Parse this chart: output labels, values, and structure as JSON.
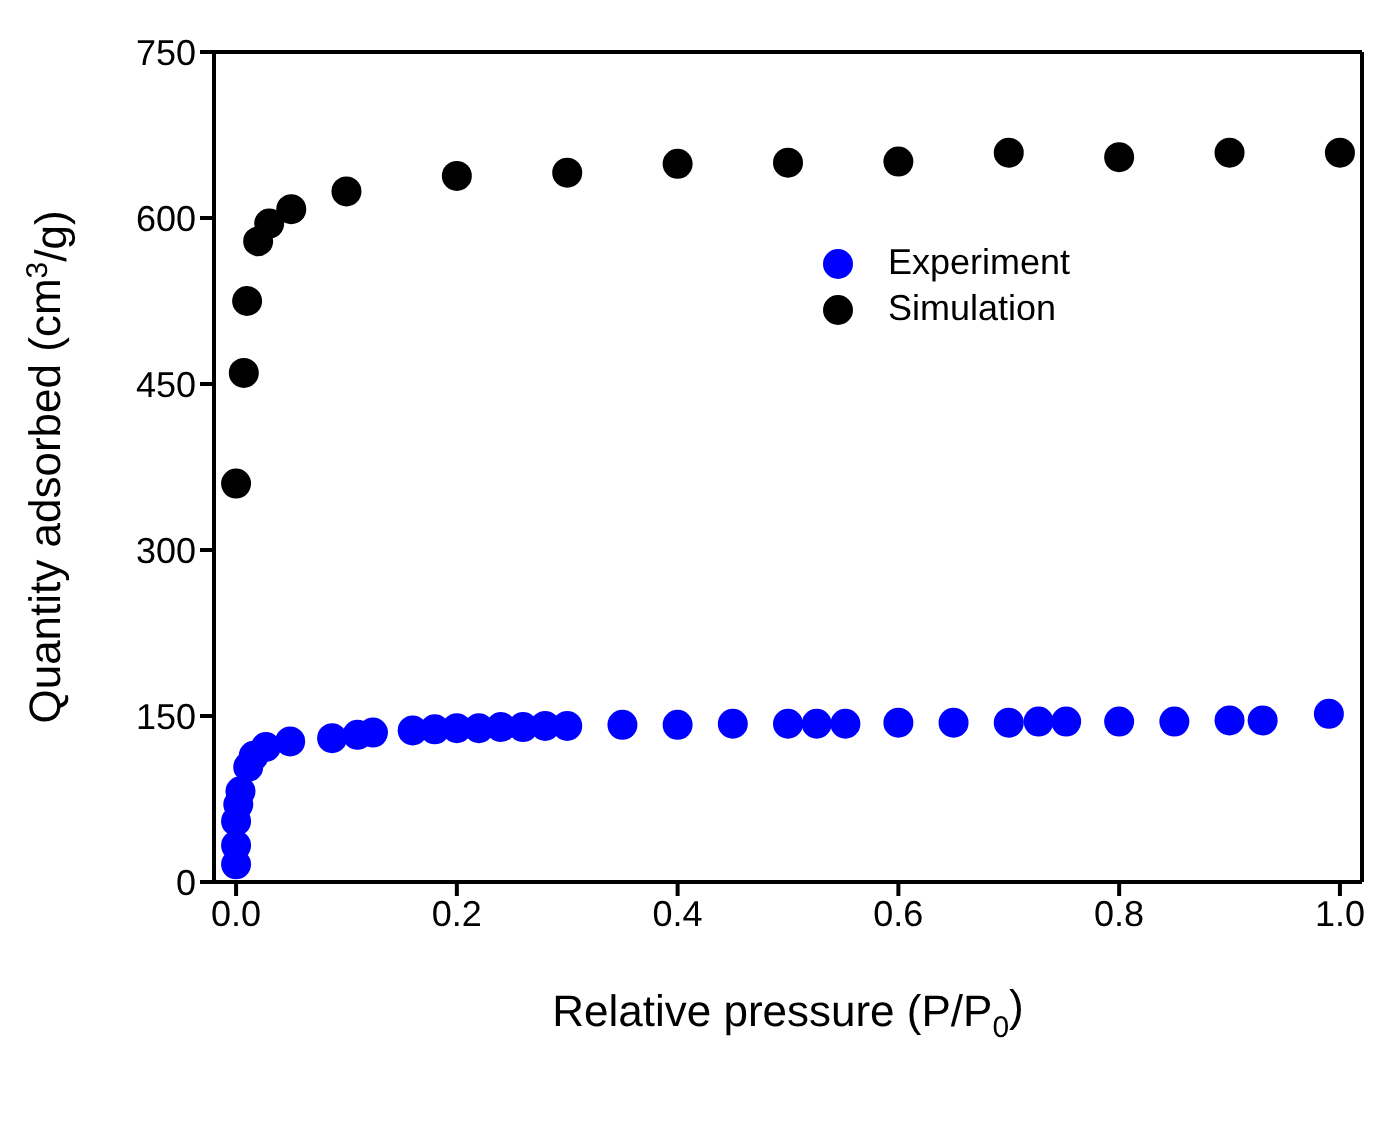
{
  "chart_data": {
    "type": "scatter",
    "xlabel": "Relative pressure (P/P$_{0}$)",
    "ylabel": "Quantity adsorbed (cm$^{3}$/g)",
    "xlim": [
      -0.02,
      1.02
    ],
    "xticks": [
      {
        "value": 0,
        "label": "0.0"
      },
      {
        "value": 0.2,
        "label": "0.2"
      },
      {
        "value": 0.4,
        "label": "0.4"
      },
      {
        "value": 0.6,
        "label": "0.6"
      },
      {
        "value": 0.8,
        "label": "0.8"
      },
      {
        "value": 1,
        "label": "1.0"
      }
    ],
    "ylim": [
      0,
      750
    ],
    "yticks": [
      0,
      150,
      300,
      450,
      600,
      750
    ],
    "legend": "right",
    "marker": "circle",
    "series": [
      {
        "name": "Experiment",
        "color": "#0000ff",
        "x": [
          0,
          0,
          0,
          0.002,
          0.004,
          0.011,
          0.016,
          0.027,
          0.049,
          0.087,
          0.11,
          0.124,
          0.16,
          0.18,
          0.2,
          0.22,
          0.24,
          0.26,
          0.28,
          0.3,
          0.35,
          0.4,
          0.45,
          0.5,
          0.526,
          0.552,
          0.6,
          0.65,
          0.7,
          0.727,
          0.752,
          0.8,
          0.85,
          0.9,
          0.93,
          0.99
        ],
        "values": [
          16,
          33,
          55,
          70,
          82,
          104,
          114,
          122,
          127,
          130,
          133,
          135,
          137,
          138,
          139,
          139,
          140,
          140,
          141,
          141,
          142,
          142,
          143,
          143,
          143,
          143,
          144,
          144,
          144,
          145,
          145,
          145,
          145,
          146,
          146,
          152
        ]
      },
      {
        "name": "Simulation",
        "color": "#000000",
        "x": [
          0,
          0.007,
          0.01,
          0.02,
          0.03,
          0.05,
          0.1,
          0.2,
          0.3,
          0.4,
          0.5,
          0.6,
          0.7,
          0.8,
          0.9,
          1.0
        ],
        "values": [
          360,
          460,
          525,
          579,
          595,
          608,
          624,
          638,
          641,
          649,
          650,
          651,
          659,
          655,
          659,
          659
        ]
      }
    ]
  }
}
